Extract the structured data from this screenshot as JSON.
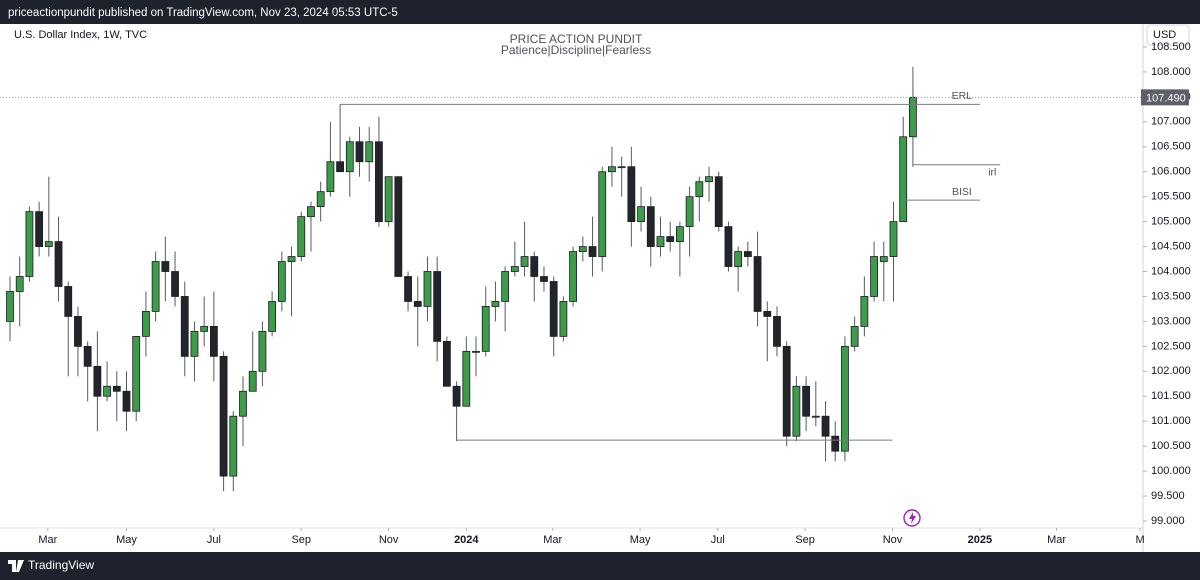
{
  "header": {
    "published": "priceactionpundit published on TradingView.com, Nov 23, 2024 05:53 UTC-5"
  },
  "footer": {
    "brand": "TradingView"
  },
  "chart_data": {
    "type": "candlestick",
    "symbol": "U.S. Dollar Index, 1W, TVC",
    "title": "PRICE ACTION PUNDIT",
    "subtitle": "Patience|Discipline|Fearless",
    "currency": "USD",
    "up_color": "#3d9b4a",
    "down_color": "#23252b",
    "wick_color": "#555a63",
    "open": [
      103.0,
      103.6,
      103.9,
      105.2,
      104.5,
      104.6,
      103.7,
      103.1,
      102.5,
      102.1,
      101.5,
      101.7,
      101.6,
      101.2,
      102.7,
      103.2,
      104.2,
      104.0,
      103.5,
      102.3,
      102.8,
      102.9,
      102.3,
      99.9,
      101.1,
      101.6,
      102.0,
      102.8,
      103.4,
      104.2,
      104.3,
      105.1,
      105.3,
      105.6,
      106.2,
      106.0,
      106.6,
      106.2,
      106.6,
      105.0,
      105.9,
      103.9,
      103.4,
      103.3,
      104.0,
      102.6,
      101.7,
      101.3,
      102.4,
      102.4,
      103.3,
      103.4,
      104.0,
      104.1,
      104.3,
      103.9,
      103.8,
      102.7,
      103.4,
      104.4,
      104.5,
      104.3,
      106.0,
      106.1,
      106.1,
      105.0,
      105.3,
      104.5,
      104.7,
      104.6,
      104.9,
      105.5,
      105.8,
      105.9,
      104.9,
      104.1,
      104.4,
      104.3,
      103.2,
      103.1,
      102.5,
      100.7,
      101.7,
      101.1,
      101.1,
      100.7,
      100.4,
      102.5,
      102.9,
      103.5,
      104.2,
      104.3,
      105.0,
      106.7
    ],
    "high": [
      103.9,
      104.3,
      105.3,
      105.4,
      105.9,
      105.1,
      103.8,
      103.3,
      102.6,
      102.8,
      102.2,
      102.0,
      102.0,
      102.7,
      103.6,
      104.4,
      104.7,
      104.4,
      103.8,
      103.0,
      103.5,
      103.6,
      102.4,
      101.2,
      101.9,
      102.8,
      103.0,
      103.6,
      104.4,
      104.5,
      105.2,
      105.4,
      105.8,
      107.0,
      107.35,
      106.7,
      106.9,
      106.9,
      107.1,
      105.9,
      105.9,
      104.0,
      103.9,
      104.3,
      104.3,
      102.7,
      101.8,
      102.7,
      102.7,
      103.7,
      103.8,
      104.1,
      104.6,
      105.0,
      104.4,
      104.1,
      103.9,
      103.5,
      104.5,
      104.7,
      105.1,
      106.1,
      106.5,
      106.3,
      106.5,
      105.7,
      105.5,
      105.1,
      105.0,
      105.0,
      105.7,
      105.9,
      106.1,
      106.0,
      105.0,
      104.5,
      104.6,
      104.8,
      103.4,
      103.3,
      102.6,
      101.9,
      101.9,
      101.8,
      101.4,
      101.0,
      102.7,
      103.1,
      103.9,
      104.6,
      104.6,
      105.4,
      107.1,
      108.1
    ],
    "low": [
      102.6,
      102.9,
      103.8,
      104.3,
      104.3,
      103.4,
      101.9,
      101.9,
      101.4,
      100.8,
      101.4,
      101.0,
      100.8,
      101.0,
      102.3,
      103.0,
      103.4,
      103.3,
      101.9,
      101.8,
      102.5,
      101.8,
      99.6,
      99.6,
      100.5,
      101.6,
      101.7,
      102.7,
      103.2,
      103.1,
      104.2,
      104.4,
      105.0,
      105.5,
      106.0,
      105.5,
      105.9,
      105.8,
      104.9,
      104.9,
      103.9,
      103.2,
      102.5,
      103.0,
      102.2,
      101.7,
      100.6,
      101.3,
      101.9,
      102.3,
      103.0,
      102.8,
      103.9,
      103.9,
      103.4,
      103.6,
      102.3,
      102.6,
      103.3,
      104.2,
      103.9,
      104.0,
      105.7,
      105.5,
      104.5,
      104.8,
      104.1,
      104.3,
      104.4,
      103.9,
      104.3,
      105.0,
      105.4,
      104.8,
      104.0,
      103.6,
      104.1,
      102.9,
      102.2,
      102.3,
      100.5,
      100.6,
      100.8,
      100.9,
      100.2,
      100.2,
      100.2,
      102.4,
      102.7,
      103.4,
      103.4,
      103.4,
      105.0,
      106.1
    ],
    "close": [
      103.6,
      103.9,
      105.2,
      104.5,
      104.6,
      103.7,
      103.1,
      102.5,
      102.1,
      101.5,
      101.7,
      101.6,
      101.2,
      102.7,
      103.2,
      104.2,
      104.0,
      103.5,
      102.3,
      102.8,
      102.9,
      102.3,
      99.9,
      101.1,
      101.6,
      102.0,
      102.8,
      103.4,
      104.2,
      104.3,
      105.1,
      105.3,
      105.6,
      106.2,
      106.0,
      106.6,
      106.2,
      106.6,
      105.0,
      105.9,
      103.9,
      103.4,
      103.3,
      104.0,
      102.6,
      101.7,
      101.3,
      102.4,
      102.4,
      103.3,
      103.4,
      104.0,
      104.1,
      104.3,
      103.9,
      103.8,
      102.7,
      103.4,
      104.4,
      104.5,
      104.3,
      106.0,
      106.1,
      106.1,
      105.0,
      105.3,
      104.5,
      104.7,
      104.6,
      104.9,
      105.5,
      105.8,
      105.9,
      104.9,
      104.1,
      104.4,
      104.3,
      103.2,
      103.1,
      102.5,
      100.7,
      101.7,
      101.1,
      101.1,
      100.7,
      100.4,
      102.5,
      102.9,
      103.5,
      104.3,
      104.3,
      105.0,
      106.7,
      107.49
    ],
    "last_price": {
      "value": 107.49,
      "label": "107.490"
    },
    "levels": [
      {
        "label": "ERL",
        "value": 107.35,
        "from": 34,
        "to": 99.9
      },
      {
        "value": 100.62,
        "from": 46,
        "to": 90.9
      },
      {
        "label": "irl",
        "value": 106.14,
        "from": 93,
        "to": 102
      },
      {
        "label": "BISI",
        "value": 105.43,
        "from": 92,
        "to": 99.9
      }
    ],
    "xlim": [
      -1.03,
      116.7
    ],
    "xticks": [
      {
        "value": 3.9,
        "label": "Mar"
      },
      {
        "value": 12.0,
        "label": "May"
      },
      {
        "value": 21.0,
        "label": "Jul"
      },
      {
        "value": 30.0,
        "label": "Sep"
      },
      {
        "value": 39.0,
        "label": "Nov"
      },
      {
        "value": 47.0,
        "label": "2024"
      },
      {
        "value": 55.9,
        "label": "Mar"
      },
      {
        "value": 64.9,
        "label": "May"
      },
      {
        "value": 72.9,
        "label": "Jul"
      },
      {
        "value": 81.9,
        "label": "Sep"
      },
      {
        "value": 90.9,
        "label": "Nov"
      },
      {
        "value": 99.9,
        "label": "2025"
      },
      {
        "value": 107.8,
        "label": "Mar"
      },
      {
        "value": 116.4,
        "label": "M"
      }
    ],
    "ylim": [
      98.86,
      108.96
    ],
    "yticks": [
      {
        "value": 99.0,
        "label": "99.000"
      },
      {
        "value": 99.5,
        "label": "99.500"
      },
      {
        "value": 100.0,
        "label": "100.000"
      },
      {
        "value": 100.5,
        "label": "100.500"
      },
      {
        "value": 101.0,
        "label": "101.000"
      },
      {
        "value": 101.5,
        "label": "101.500"
      },
      {
        "value": 102.0,
        "label": "102.000"
      },
      {
        "value": 102.5,
        "label": "102.500"
      },
      {
        "value": 103.0,
        "label": "103.000"
      },
      {
        "value": 103.5,
        "label": "103.500"
      },
      {
        "value": 104.0,
        "label": "104.000"
      },
      {
        "value": 104.5,
        "label": "104.500"
      },
      {
        "value": 105.0,
        "label": "105.000"
      },
      {
        "value": 105.5,
        "label": "105.500"
      },
      {
        "value": 106.0,
        "label": "106.000"
      },
      {
        "value": 106.5,
        "label": "106.500"
      },
      {
        "value": 107.0,
        "label": "107.000"
      },
      {
        "value": 107.5,
        "label": "107.500"
      },
      {
        "value": 108.0,
        "label": "108.000"
      },
      {
        "value": 108.5,
        "label": "108.500"
      }
    ],
    "grid": false
  }
}
